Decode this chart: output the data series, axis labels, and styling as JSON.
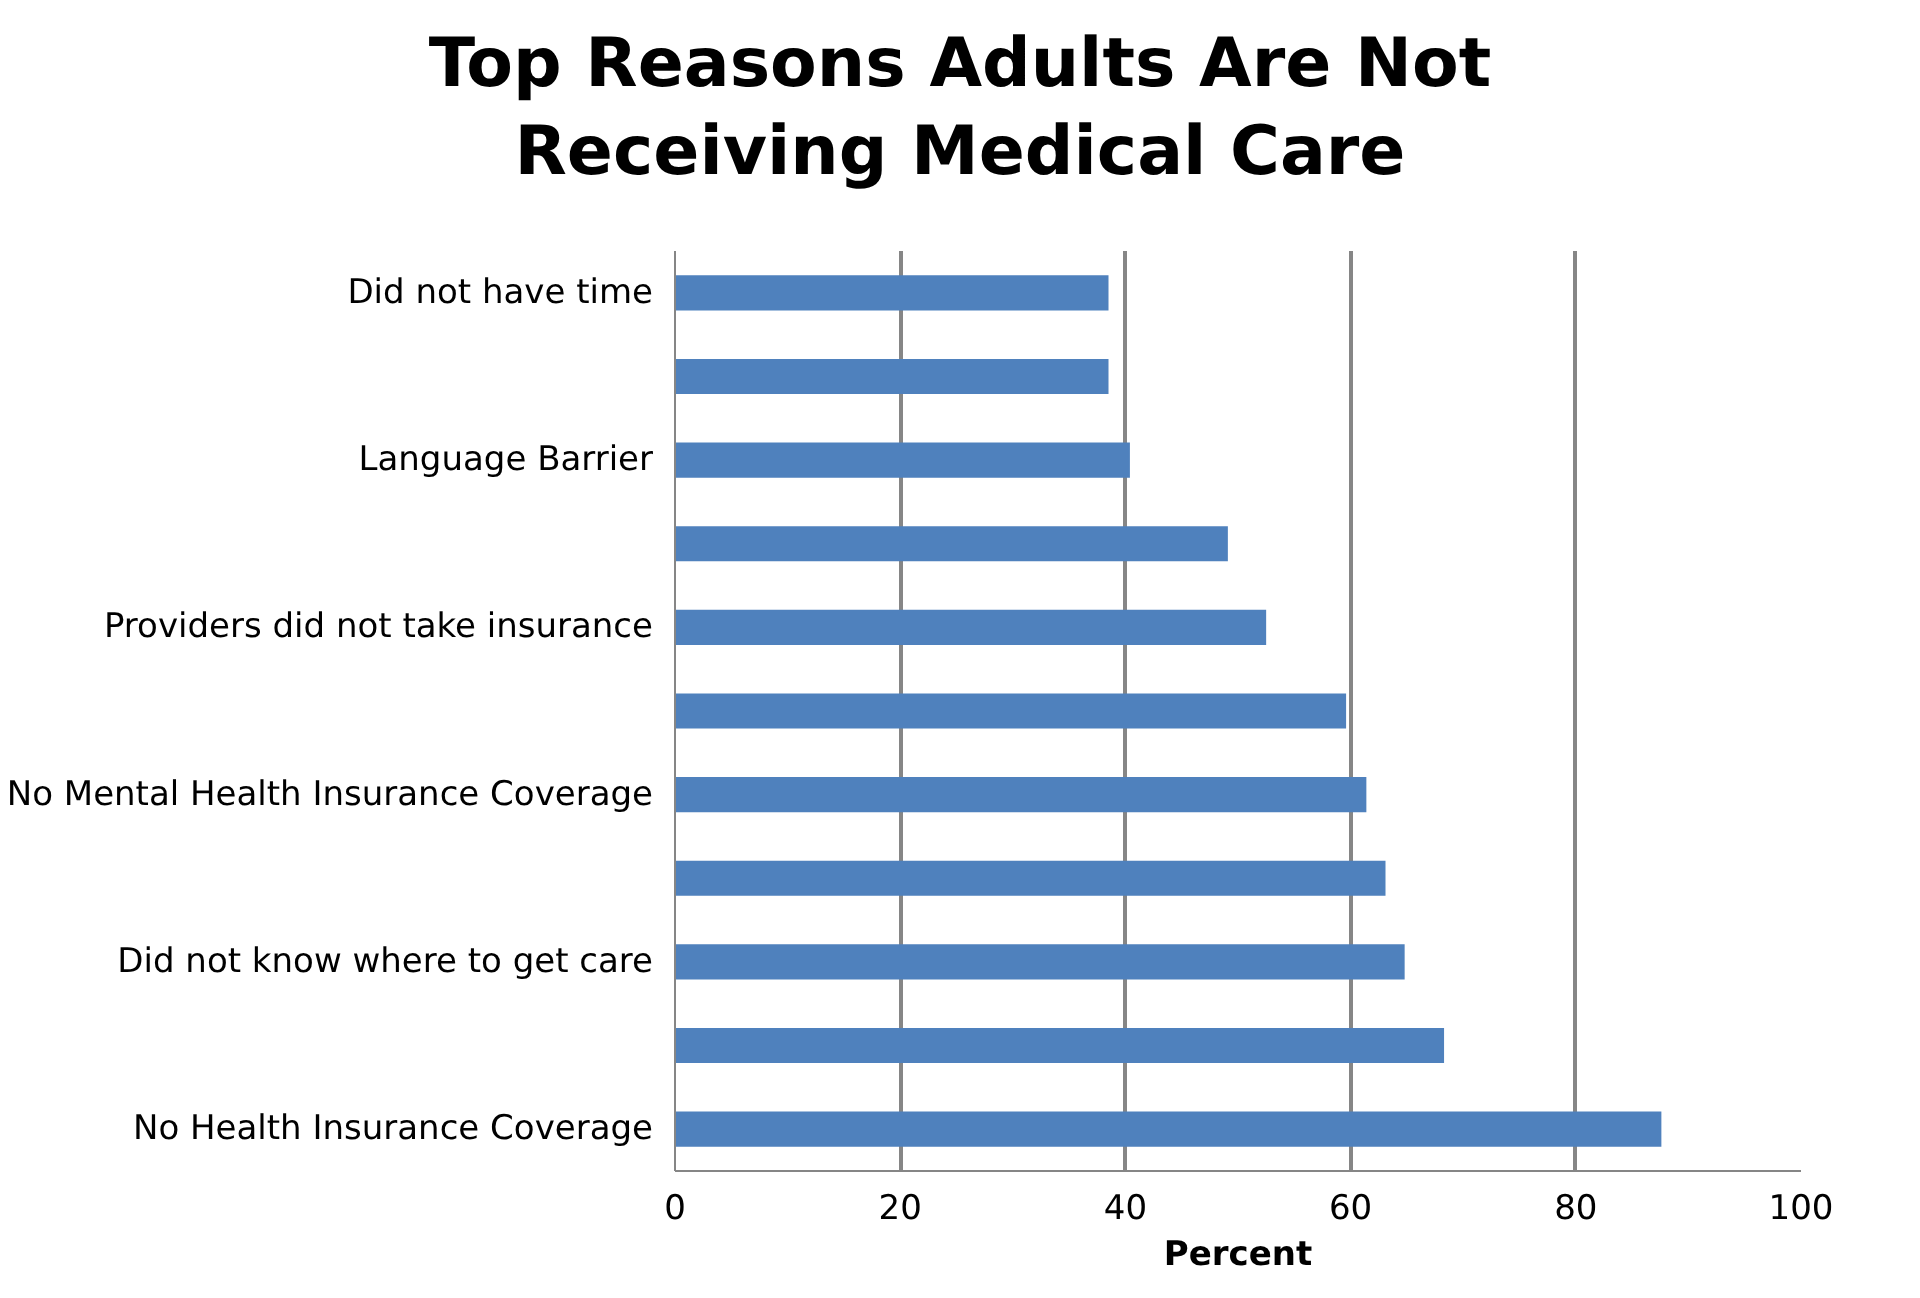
{
  "chart_data": {
    "type": "bar",
    "orientation": "horizontal",
    "title": "Top Reasons Adults Are Not Receiving Medical Care",
    "xlabel": "Percent",
    "categories": [
      "Did not have time",
      null,
      "Language Barrier",
      null,
      "Providers did not take insurance",
      null,
      "No Mental Health Insurance Coverage",
      null,
      "Did not know where to get care",
      null,
      "No Health Insurance Coverage"
    ],
    "values": [
      38.5,
      38.5,
      40.4,
      49.1,
      52.5,
      59.6,
      61.4,
      63.1,
      64.8,
      68.3,
      87.6
    ],
    "color": "#4f81bd",
    "xlim": [
      0,
      100
    ],
    "xticks": [
      0,
      20,
      40,
      60,
      80,
      100
    ],
    "grid": "x"
  }
}
